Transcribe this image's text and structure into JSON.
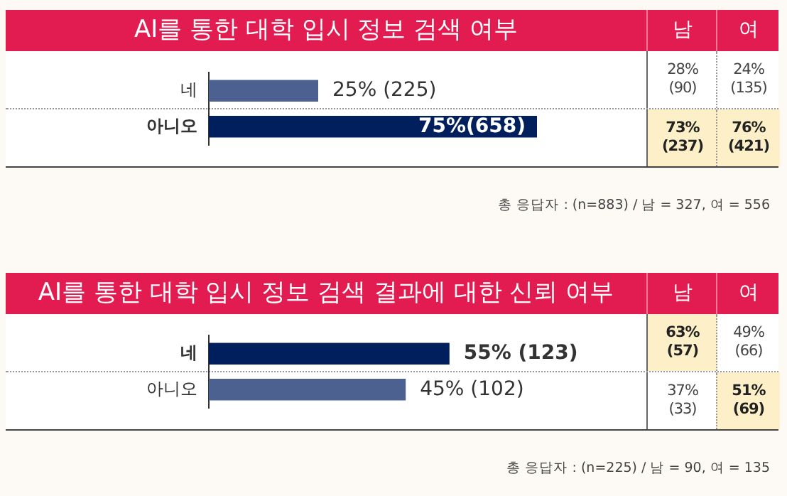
{
  "chart_data": [
    {
      "type": "bar",
      "orientation": "horizontal",
      "title": "AI를 통한 대학 입시 정보 검색 여부",
      "categories": [
        "네",
        "아니오"
      ],
      "values": [
        25,
        75
      ],
      "colors": [
        "#4d6190",
        "#001f5c"
      ],
      "value_labels": [
        "25% (225)",
        "75%(658)"
      ],
      "xlim": [
        0,
        100
      ],
      "tick_labels": "y",
      "annotations": [
        "남",
        "여",
        "28% (90)",
        "24% (135)",
        "73% (237)",
        "76% (421)",
        "총 응답자 : (n=883) / 남 = 327, 여 = 556"
      ]
    },
    {
      "type": "bar",
      "orientation": "horizontal",
      "title": "AI를 통한 대학 입시 정보 검색 결과에 대한 신뢰 여부",
      "categories": [
        "네",
        "아니오"
      ],
      "values": [
        55,
        45
      ],
      "colors": [
        "#001f5c",
        "#4d6190"
      ],
      "value_labels": [
        "55% (123)",
        "45% (102)"
      ],
      "xlim": [
        0,
        100
      ],
      "tick_labels": "y",
      "annotations": [
        "남",
        "여",
        "63% (57)",
        "49% (66)",
        "37% (33)",
        "51% (69)",
        "총 응답자 : (n=225) / 남 = 90, 여 = 135"
      ]
    }
  ]
}
